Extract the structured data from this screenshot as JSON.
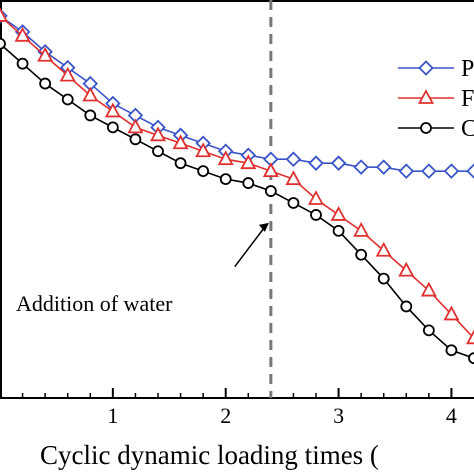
{
  "chart_data": {
    "type": "line",
    "xlabel": "Cyclic dynamic loading times (",
    "ylabel": "",
    "xlim": [
      0,
      4.2
    ],
    "ylim": [
      0,
      1
    ],
    "x_ticks": [
      "1",
      "2",
      "3",
      "4"
    ],
    "x_tick_values": [
      1,
      2,
      3,
      4
    ],
    "grid": false,
    "legend_position": "top-right",
    "vline": {
      "x": 2.4,
      "style": "dashed",
      "color": "#777777"
    },
    "annotation": {
      "text": "Addition of water",
      "x": 2.4,
      "y": 0.44
    },
    "series": [
      {
        "name": "P",
        "color": "#3a55c8",
        "marker": "diamond",
        "x": [
          0.0,
          0.2,
          0.4,
          0.6,
          0.8,
          1.0,
          1.2,
          1.4,
          1.6,
          1.8,
          2.0,
          2.2,
          2.4,
          2.6,
          2.8,
          3.0,
          3.2,
          3.4,
          3.6,
          3.8,
          4.0,
          4.2
        ],
        "values": [
          0.96,
          0.92,
          0.87,
          0.83,
          0.79,
          0.74,
          0.71,
          0.68,
          0.66,
          0.64,
          0.62,
          0.61,
          0.6,
          0.6,
          0.59,
          0.59,
          0.58,
          0.58,
          0.57,
          0.57,
          0.57,
          0.57
        ]
      },
      {
        "name": "F",
        "color": "#e03030",
        "marker": "triangle",
        "x": [
          0.0,
          0.2,
          0.4,
          0.6,
          0.8,
          1.0,
          1.2,
          1.4,
          1.6,
          1.8,
          2.0,
          2.2,
          2.4,
          2.6,
          2.8,
          3.0,
          3.2,
          3.4,
          3.6,
          3.8,
          4.0,
          4.2
        ],
        "values": [
          0.96,
          0.91,
          0.86,
          0.81,
          0.76,
          0.72,
          0.68,
          0.66,
          0.64,
          0.62,
          0.6,
          0.59,
          0.57,
          0.55,
          0.5,
          0.46,
          0.42,
          0.37,
          0.32,
          0.27,
          0.21,
          0.15
        ]
      },
      {
        "name": "C",
        "color": "#000000",
        "marker": "circle",
        "x": [
          0.0,
          0.2,
          0.4,
          0.6,
          0.8,
          1.0,
          1.2,
          1.4,
          1.6,
          1.8,
          2.0,
          2.2,
          2.4,
          2.6,
          2.8,
          3.0,
          3.2,
          3.4,
          3.6,
          3.8,
          4.0,
          4.2
        ],
        "values": [
          0.89,
          0.84,
          0.79,
          0.75,
          0.71,
          0.68,
          0.65,
          0.62,
          0.59,
          0.57,
          0.55,
          0.54,
          0.52,
          0.49,
          0.46,
          0.42,
          0.36,
          0.3,
          0.23,
          0.17,
          0.12,
          0.1
        ]
      }
    ]
  }
}
